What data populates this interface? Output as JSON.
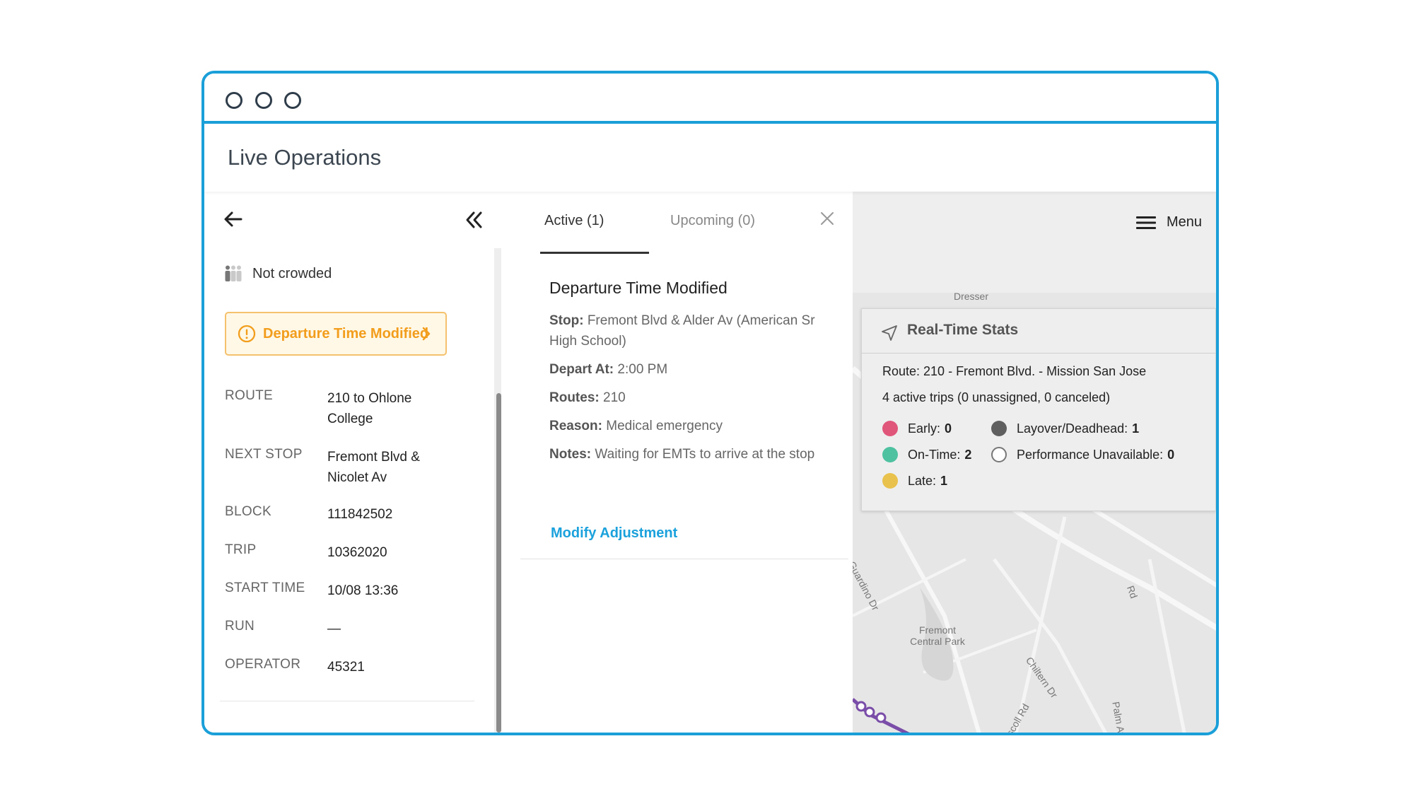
{
  "app": {
    "title": "Live Operations"
  },
  "left_panel": {
    "crowding": "Not crowded",
    "alert_label": "Departure Time Modified",
    "details": [
      {
        "key": "ROUTE",
        "value": "210 to Ohlone College"
      },
      {
        "key": "NEXT STOP",
        "value": "Fremont Blvd & Nicolet Av"
      },
      {
        "key": "BLOCK",
        "value": "111842502"
      },
      {
        "key": "TRIP",
        "value": "10362020"
      },
      {
        "key": "START TIME",
        "value": "10/08 13:36"
      },
      {
        "key": "RUN",
        "value": "—"
      },
      {
        "key": "OPERATOR",
        "value": "45321"
      }
    ]
  },
  "adjustments": {
    "tabs": [
      {
        "label": "Active (1)",
        "active": true
      },
      {
        "label": "Upcoming (0)",
        "active": false
      }
    ],
    "title": "Departure Time Modified",
    "fields": [
      {
        "label": "Stop:",
        "value": "Fremont Blvd & Alder Av (American Sr High School)"
      },
      {
        "label": "Depart At:",
        "value": "2:00 PM"
      },
      {
        "label": "Routes:",
        "value": "210"
      },
      {
        "label": "Reason:",
        "value": "Medical emergency"
      },
      {
        "label": "Notes:",
        "value": "Waiting for EMTs to arrive at the stop"
      }
    ],
    "link": "Modify Adjustment"
  },
  "map": {
    "menu_label": "Menu",
    "labels": {
      "dresser": "Dresser",
      "park": "Fremont Central Park",
      "guardino": "Guardino Dr",
      "chiltern": "Chiltern Dr",
      "driscoll": "Driscoll Rd",
      "palm": "Palm Av",
      "ruby": "Rd"
    },
    "stats": {
      "title": "Real-Time Stats",
      "route": "Route: 210 - Fremont Blvd. - Mission San Jose",
      "summary": "4 active trips (0 unassigned, 0 canceled)",
      "legend": [
        {
          "label": "Early:",
          "count": "0",
          "color": "#e0557a"
        },
        {
          "label": "On-Time:",
          "count": "2",
          "color": "#4dc1a0"
        },
        {
          "label": "Late:",
          "count": "1",
          "color": "#e8c24c"
        },
        {
          "label": "Layover/Deadhead:",
          "count": "1",
          "color": "#5f5f5f"
        },
        {
          "label": "Performance Unavailable:",
          "count": "0",
          "color": "#ffffff"
        }
      ]
    }
  }
}
